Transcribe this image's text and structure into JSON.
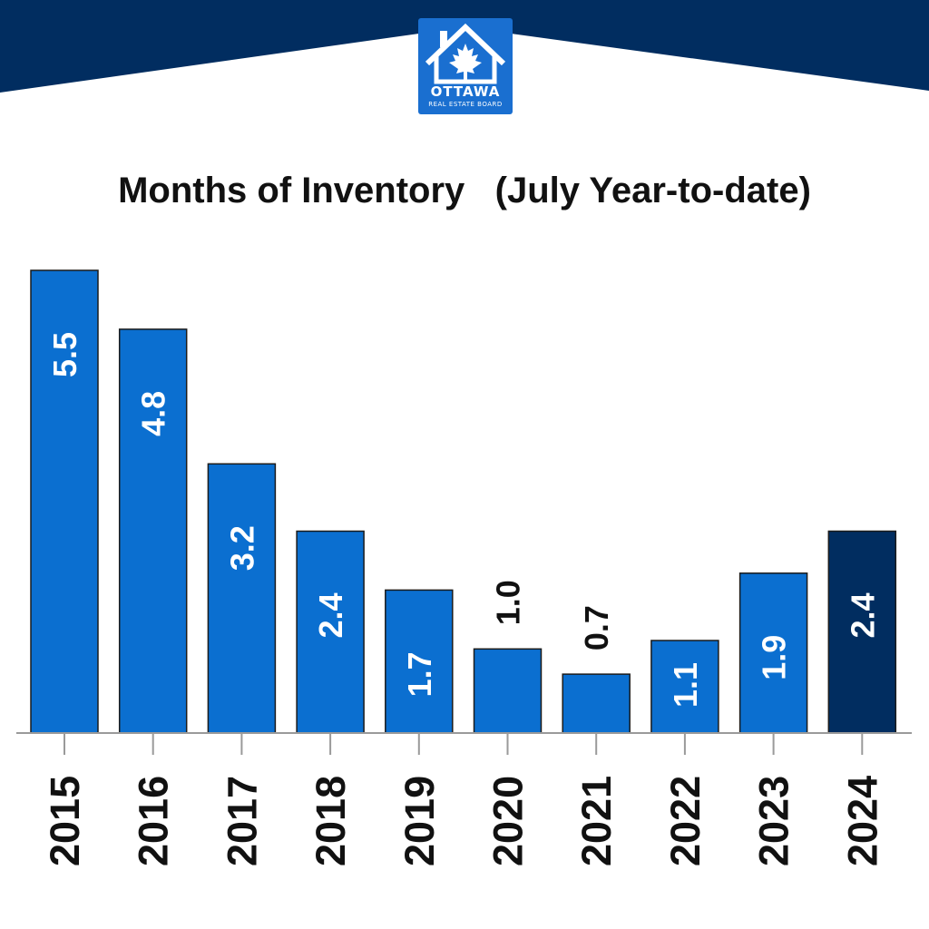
{
  "logo": {
    "name": "OTTAWA",
    "subtitle": "REAL ESTATE BOARD"
  },
  "colors": {
    "header": "#012d60",
    "bar": "#0b6fd0",
    "bar_highlight": "#012d60",
    "bar_outline": "#1b1b1b",
    "axis": "#9a9a9a"
  },
  "chart_data": {
    "type": "bar",
    "title": "Months of Inventory   (July Year-to-date)",
    "xlabel": "",
    "ylabel": "",
    "categories": [
      "2015",
      "2016",
      "2017",
      "2018",
      "2019",
      "2020",
      "2021",
      "2022",
      "2023",
      "2024"
    ],
    "values": [
      5.5,
      4.8,
      3.2,
      2.4,
      1.7,
      1.0,
      0.7,
      1.1,
      1.9,
      2.4
    ],
    "data_labels": [
      "5.5",
      "4.8",
      "3.2",
      "2.4",
      "1.7",
      "1.0",
      "0.7",
      "1.1",
      "1.9",
      "2.4"
    ],
    "highlight_category": "2024",
    "ylim": [
      0,
      5.5
    ],
    "grid": false,
    "legend": "none"
  }
}
